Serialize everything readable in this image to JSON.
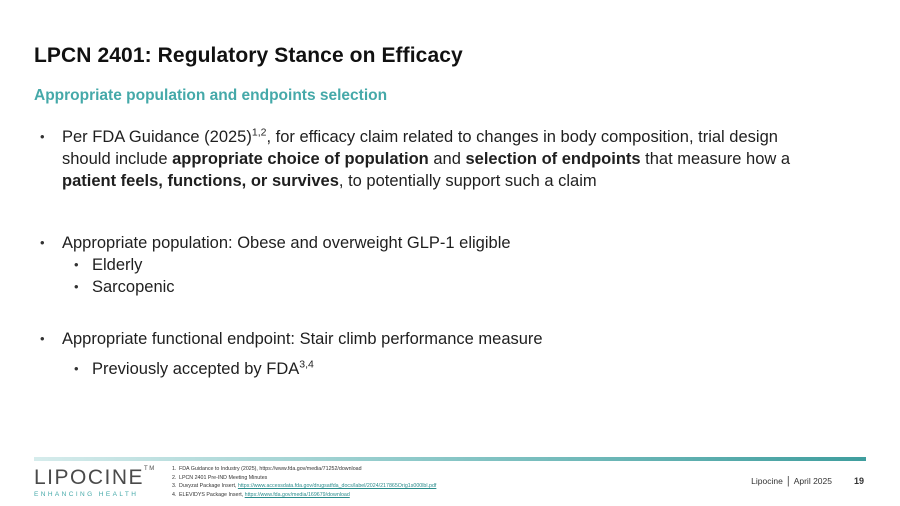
{
  "slide": {
    "title": "LPCN 2401: Regulatory Stance on Efficacy",
    "subtitle": "Appropriate population and endpoints selection"
  },
  "bullets": {
    "b1": {
      "t1": "Per FDA Guidance (2025)",
      "sup1": "1,2",
      "t2": ",  for efficacy claim related to changes in body composition, trial design should include ",
      "bold1": "appropriate choice of population",
      "t3": " and ",
      "bold2": "selection of endpoints",
      "t4": " that measure how a ",
      "bold3": "patient feels, functions, or survives",
      "t5": ", to potentially support such a claim"
    },
    "b2": {
      "text": "Appropriate population: Obese and overweight GLP-1 eligible",
      "subs": [
        "Elderly",
        "Sarcopenic"
      ]
    },
    "b3": {
      "text": "Appropriate functional endpoint: Stair climb performance measure",
      "sub_text": "Previously accepted by FDA",
      "sub_sup": "3,4"
    }
  },
  "footer": {
    "logo_text": "LIPOCINE",
    "logo_tm": "TM",
    "logo_tagline": "ENHANCING HEALTH",
    "company": "Lipocine",
    "separator": "|",
    "date": "April 2025",
    "page_number": "19",
    "references": [
      {
        "num": "1.",
        "text": "FDA Guidance to Industry (2025), https://www.fda.gov/media/71252/download",
        "link": ""
      },
      {
        "num": "2.",
        "text": "LPCN 2401 Pre-IND Meeting Minutes",
        "link": ""
      },
      {
        "num": "3.",
        "text": "Duvyzat Package Insert, ",
        "link": "https://www.accessdata.fda.gov/drugsatfda_docs/label/2024/217865Orig1s000lbl.pdf"
      },
      {
        "num": "4.",
        "text": "ELEVIDYS Package Insert, ",
        "link": "https://www.fda.gov/media/169679/download"
      }
    ]
  },
  "colors": {
    "accent": "#45a9a9",
    "title": "#111111",
    "text": "#1f1f1f"
  }
}
